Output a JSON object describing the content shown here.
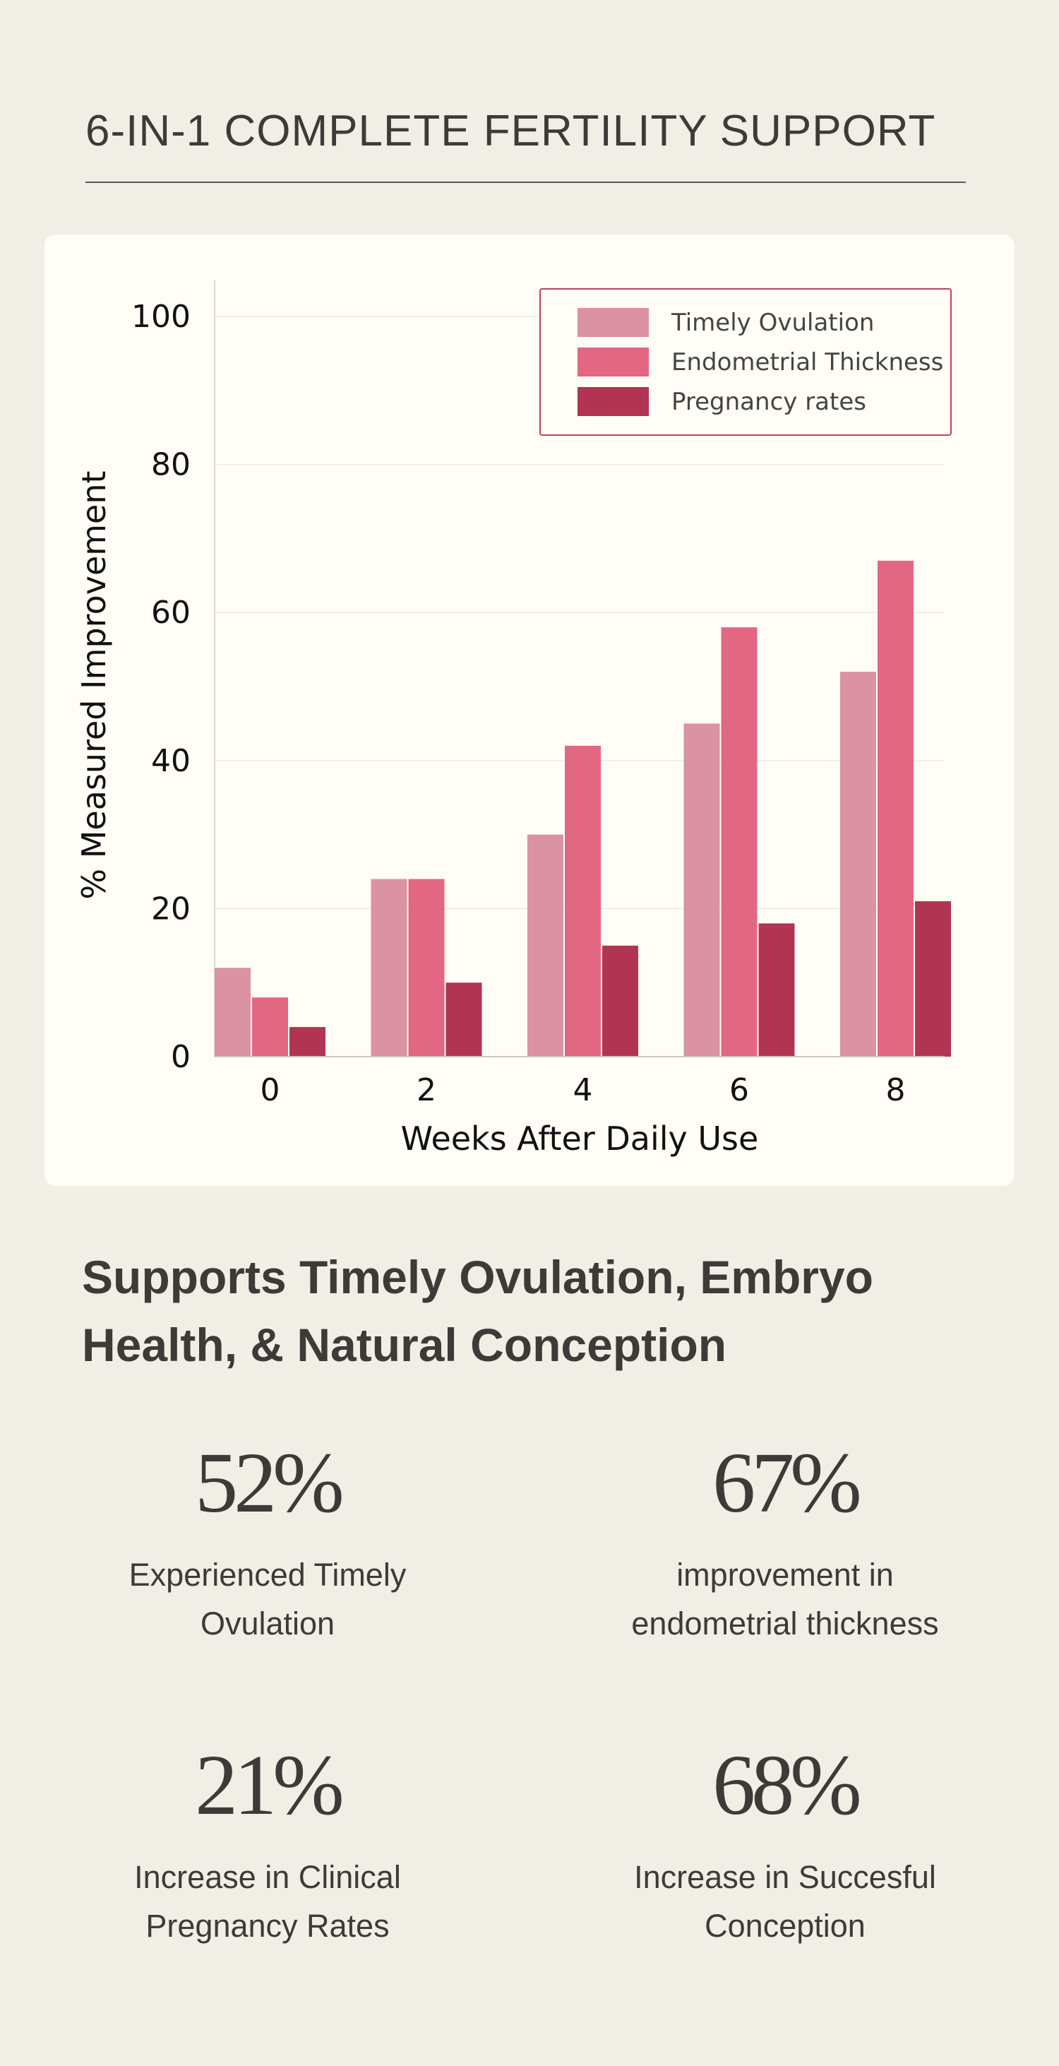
{
  "header": {
    "title": "6-IN-1 COMPLETE FERTILITY SUPPORT"
  },
  "chart_data": {
    "type": "bar",
    "title": "",
    "xlabel": "Weeks After Daily Use",
    "ylabel": "% Measured Improvement",
    "categories": [
      "0",
      "2",
      "4",
      "6",
      "8"
    ],
    "yticks": [
      "0",
      "20",
      "40",
      "60",
      "80",
      "100"
    ],
    "ylim": [
      0,
      105
    ],
    "grid": true,
    "legend_position": "top-right",
    "series": [
      {
        "name": "Timely Ovulation",
        "color": "#db92a2",
        "values": [
          12,
          24,
          30,
          45,
          52
        ]
      },
      {
        "name": "Endometrial Thickness",
        "color": "#e26782",
        "values": [
          8,
          24,
          42,
          58,
          67
        ]
      },
      {
        "name": "Pregnancy rates",
        "color": "#b13552",
        "values": [
          4,
          10,
          15,
          18,
          21
        ]
      }
    ]
  },
  "subheading": {
    "line1": "Supports Timely Ovulation, Embryo",
    "line2": "Health, & Natural Conception"
  },
  "stats": [
    {
      "value": "52%",
      "line1": "Experienced Timely",
      "line2": "Ovulation"
    },
    {
      "value": "67%",
      "line1": "improvement in",
      "line2": "endometrial thickness"
    },
    {
      "value": "21%",
      "line1": "Increase in Clinical",
      "line2": "Pregnancy Rates"
    },
    {
      "value": "68%",
      "line1": "Increase in Succesful",
      "line2": "Conception"
    }
  ]
}
